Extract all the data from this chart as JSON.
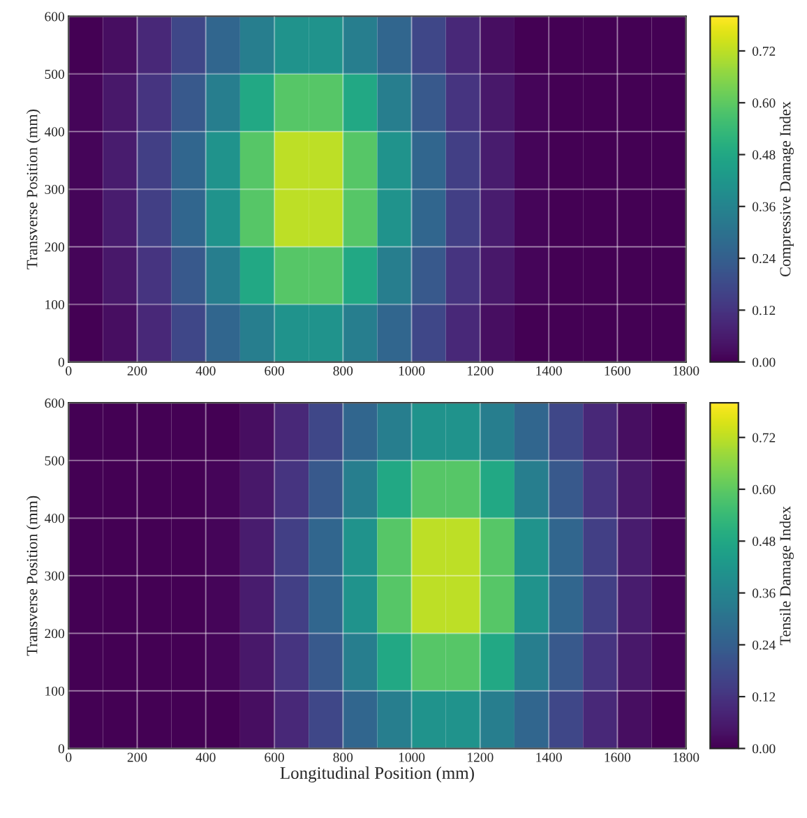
{
  "chart_data": [
    {
      "type": "heatmap",
      "ylabel": "Transverse Position (mm)",
      "clabel": "Compressive Damage Index",
      "xlim": [
        0,
        1800
      ],
      "xticks": [
        0,
        200,
        400,
        600,
        800,
        1000,
        1200,
        1400,
        1600,
        1800
      ],
      "ylim": [
        0,
        600
      ],
      "yticks": [
        0,
        100,
        200,
        300,
        400,
        500,
        600
      ],
      "clim": [
        0,
        0.8
      ],
      "cticks": [
        {
          "value": 0,
          "label": "0.00"
        },
        {
          "value": 0.12,
          "label": "0.12"
        },
        {
          "value": 0.24,
          "label": "0.24"
        },
        {
          "value": 0.36,
          "label": "0.36"
        },
        {
          "value": 0.48,
          "label": "0.48"
        },
        {
          "value": 0.6,
          "label": "0.60"
        },
        {
          "value": 0.72,
          "label": "0.72"
        }
      ],
      "grid": true,
      "cells": [
        [
          0,
          0.03,
          0.09,
          0.17,
          0.26,
          0.34,
          0.41,
          0.41,
          0.34,
          0.26,
          0.17,
          0.09,
          0.03,
          0,
          0,
          0,
          0,
          0
        ],
        [
          0.01,
          0.05,
          0.12,
          0.22,
          0.34,
          0.48,
          0.59,
          0.59,
          0.48,
          0.34,
          0.22,
          0.12,
          0.05,
          0.01,
          0,
          0,
          0,
          0
        ],
        [
          0.01,
          0.06,
          0.15,
          0.26,
          0.41,
          0.59,
          0.72,
          0.72,
          0.59,
          0.41,
          0.26,
          0.15,
          0.06,
          0.01,
          0,
          0,
          0,
          0
        ],
        [
          0.01,
          0.06,
          0.15,
          0.26,
          0.41,
          0.59,
          0.72,
          0.72,
          0.59,
          0.41,
          0.26,
          0.15,
          0.06,
          0.01,
          0,
          0,
          0,
          0
        ],
        [
          0.01,
          0.05,
          0.12,
          0.22,
          0.34,
          0.48,
          0.59,
          0.59,
          0.48,
          0.34,
          0.22,
          0.12,
          0.05,
          0.01,
          0,
          0,
          0,
          0
        ],
        [
          0,
          0.03,
          0.09,
          0.17,
          0.26,
          0.34,
          0.41,
          0.41,
          0.34,
          0.26,
          0.17,
          0.09,
          0.03,
          0,
          0,
          0,
          0,
          0
        ]
      ]
    },
    {
      "type": "heatmap",
      "xlabel": "Longitudinal Position (mm)",
      "ylabel": "Transverse Position (mm)",
      "clabel": "Tensile Damage Index",
      "xlim": [
        0,
        1800
      ],
      "xticks": [
        0,
        200,
        400,
        600,
        800,
        1000,
        1200,
        1400,
        1600,
        1800
      ],
      "ylim": [
        0,
        600
      ],
      "yticks": [
        0,
        100,
        200,
        300,
        400,
        500,
        600
      ],
      "clim": [
        0,
        0.8
      ],
      "cticks": [
        {
          "value": 0,
          "label": "0.00"
        },
        {
          "value": 0.12,
          "label": "0.12"
        },
        {
          "value": 0.24,
          "label": "0.24"
        },
        {
          "value": 0.36,
          "label": "0.36"
        },
        {
          "value": 0.48,
          "label": "0.48"
        },
        {
          "value": 0.6,
          "label": "0.60"
        },
        {
          "value": 0.72,
          "label": "0.72"
        }
      ],
      "grid": true,
      "cells": [
        [
          0,
          0,
          0,
          0,
          0,
          0.03,
          0.09,
          0.17,
          0.26,
          0.34,
          0.41,
          0.41,
          0.34,
          0.26,
          0.17,
          0.09,
          0.03,
          0
        ],
        [
          0,
          0,
          0,
          0,
          0.01,
          0.05,
          0.12,
          0.22,
          0.34,
          0.48,
          0.59,
          0.59,
          0.48,
          0.34,
          0.22,
          0.12,
          0.05,
          0.01
        ],
        [
          0,
          0,
          0,
          0,
          0.01,
          0.06,
          0.15,
          0.26,
          0.41,
          0.59,
          0.72,
          0.72,
          0.59,
          0.41,
          0.26,
          0.15,
          0.06,
          0.01
        ],
        [
          0,
          0,
          0,
          0,
          0.01,
          0.06,
          0.15,
          0.26,
          0.41,
          0.59,
          0.72,
          0.72,
          0.59,
          0.41,
          0.26,
          0.15,
          0.06,
          0.01
        ],
        [
          0,
          0,
          0,
          0,
          0.01,
          0.05,
          0.12,
          0.22,
          0.34,
          0.48,
          0.59,
          0.59,
          0.48,
          0.34,
          0.22,
          0.12,
          0.05,
          0.01
        ],
        [
          0,
          0,
          0,
          0,
          0,
          0.03,
          0.09,
          0.17,
          0.26,
          0.34,
          0.41,
          0.41,
          0.34,
          0.26,
          0.17,
          0.09,
          0.03,
          0
        ]
      ]
    }
  ]
}
